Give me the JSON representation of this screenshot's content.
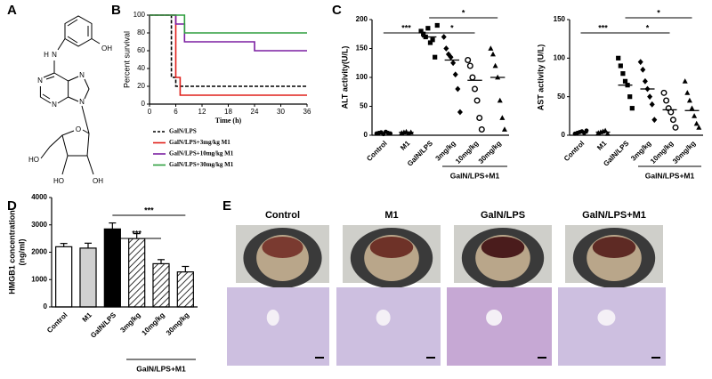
{
  "panel_labels": [
    "A",
    "B",
    "C",
    "D",
    "E"
  ],
  "structure": {
    "atoms": [
      "OH",
      "H",
      "N",
      "N",
      "N",
      "N",
      "N",
      "O",
      "HO",
      "HO",
      "OH"
    ]
  },
  "chart_data": [
    {
      "type": "step",
      "ylabel": "Percent survival",
      "xlabel": "Time (h)",
      "xlim": [
        0,
        36
      ],
      "xticks": [
        0,
        6,
        12,
        18,
        24,
        30,
        36
      ],
      "ylim": [
        0,
        100
      ],
      "yticks": [
        0,
        20,
        40,
        60,
        80,
        100
      ],
      "series": [
        {
          "name": "GalN/LPS",
          "color": "#000000",
          "dashed": true,
          "x": [
            0,
            5,
            6,
            36
          ],
          "values": [
            100,
            30,
            20,
            20
          ]
        },
        {
          "name": "GalN/LPS+3mg/kg M1",
          "color": "#e0201b",
          "dashed": false,
          "x": [
            0,
            6,
            7,
            36
          ],
          "values": [
            100,
            30,
            10,
            10
          ]
        },
        {
          "name": "GalN/LPS+10mg/kg M1",
          "color": "#7b1fa2",
          "dashed": false,
          "x": [
            0,
            6,
            8,
            24,
            36
          ],
          "values": [
            100,
            90,
            70,
            60,
            60
          ]
        },
        {
          "name": "GalN/LPS+30mg/kg M1",
          "color": "#2e9e3e",
          "dashed": false,
          "x": [
            0,
            8,
            36
          ],
          "values": [
            100,
            80,
            80
          ]
        }
      ]
    },
    {
      "type": "dot",
      "ylabel": "ALT activity(U/L)",
      "categories": [
        "Control",
        "M1",
        "GalN/LPS",
        "3mg/kg",
        "10mg/kg",
        "30mg/kg"
      ],
      "group_label": "GalN/LPS+M1",
      "ylim": [
        0,
        200
      ],
      "yticks": [
        0,
        50,
        100,
        150,
        200
      ],
      "markers": [
        "circle",
        "triangle",
        "square",
        "diamond",
        "open-circle",
        "triangle"
      ],
      "points": [
        [
          3,
          4,
          5,
          2,
          6,
          4,
          3
        ],
        [
          4,
          5,
          6,
          3,
          5
        ],
        [
          180,
          175,
          170,
          185,
          160,
          165,
          135,
          190
        ],
        [
          170,
          150,
          140,
          135,
          125,
          105,
          80,
          40
        ],
        [
          130,
          120,
          100,
          80,
          60,
          30,
          10
        ],
        [
          150,
          140,
          120,
          100,
          60,
          30,
          10
        ]
      ],
      "means": [
        4,
        5,
        170,
        130,
        95,
        100
      ],
      "annotations": [
        "***",
        "*",
        "*"
      ]
    },
    {
      "type": "dot",
      "ylabel": "AST activity (U/L)",
      "categories": [
        "Control",
        "M1",
        "GalN/LPS",
        "3mg/kg",
        "10mg/kg",
        "30mg/kg"
      ],
      "group_label": "GalN/LPS+M1",
      "ylim": [
        0,
        150
      ],
      "yticks": [
        0,
        50,
        100,
        150
      ],
      "markers": [
        "circle",
        "triangle",
        "square",
        "diamond",
        "open-circle",
        "triangle"
      ],
      "points": [
        [
          2,
          3,
          4,
          5,
          3,
          6
        ],
        [
          3,
          4,
          5,
          6,
          2
        ],
        [
          100,
          90,
          80,
          70,
          65,
          50,
          35
        ],
        [
          95,
          85,
          70,
          60,
          50,
          40,
          20
        ],
        [
          55,
          45,
          35,
          30,
          20,
          10
        ],
        [
          70,
          55,
          45,
          35,
          25,
          15,
          10
        ]
      ],
      "means": [
        3,
        4,
        65,
        60,
        33,
        32
      ],
      "annotations": [
        "***",
        "*",
        "*"
      ]
    },
    {
      "type": "bar",
      "ylabel": [
        "HMGB1 concentration",
        "(ng/ml)"
      ],
      "categories": [
        "Control",
        "M1",
        "GalN/LPS",
        "3mg/kg",
        "10mg/kg",
        "30mg/kg"
      ],
      "group_label": "GalN/LPS+M1",
      "ylim": [
        0,
        4000
      ],
      "yticks": [
        0,
        1000,
        2000,
        3000,
        4000
      ],
      "values": [
        2200,
        2150,
        2850,
        2500,
        1580,
        1280
      ],
      "errors": [
        120,
        180,
        220,
        180,
        150,
        200
      ],
      "fills": [
        "#ffffff",
        "#d0d0d0",
        "#000000",
        "hatch",
        "hatch",
        "hatch"
      ],
      "annotations": [
        "***",
        "***"
      ]
    }
  ],
  "images": {
    "columns": [
      "Control",
      "M1",
      "GalN/LPS",
      "GalN/LPS+M1"
    ]
  }
}
